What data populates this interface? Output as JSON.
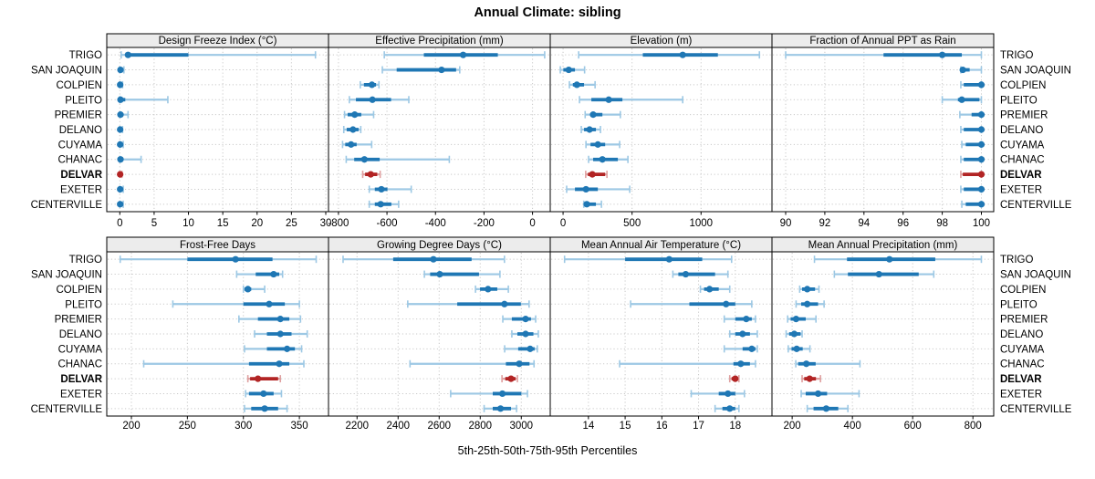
{
  "title": "Annual Climate: sibling",
  "caption": "5th-25th-50th-75th-95th Percentiles",
  "colors": {
    "blue_main": "#1f77b4",
    "blue_light": "#9dc8e4",
    "red_main": "#b22424",
    "red_light": "#dfa0a0",
    "header_bg": "#ececec",
    "grid": "#c9c9c9",
    "border": "#000000",
    "label_text": "#000000"
  },
  "sites": [
    "TRIGO",
    "SAN JOAQUIN",
    "COLPIEN",
    "PLEITO",
    "PREMIER",
    "DELANO",
    "CUYAMA",
    "CHANAC",
    "DELVAR",
    "EXETER",
    "CENTERVILLE"
  ],
  "highlight_site": "DELVAR",
  "chart_data": {
    "type": "dot-whisker-percentiles",
    "percentile_levels": [
      5,
      25,
      50,
      75,
      95
    ],
    "grid": "dotted",
    "panels": [
      {
        "title": "Design Freeze Index (°C)",
        "slug": "design-freeze-index",
        "grid_row": 0,
        "grid_col": 0,
        "xlim": [
          -1.9,
          30.4
        ],
        "ticks": [
          0,
          5,
          10,
          15,
          20,
          25,
          30
        ],
        "values": {
          "TRIGO": [
            0.2,
            0.8,
            1.2,
            10,
            28.5
          ],
          "SAN JOAQUIN": [
            0,
            0,
            0.1,
            0.2,
            0.6
          ],
          "COLPIEN": [
            0,
            0,
            0.05,
            0.15,
            0.4
          ],
          "PLEITO": [
            0,
            0,
            0.1,
            0.8,
            7
          ],
          "PREMIER": [
            0,
            0,
            0.1,
            0.4,
            1.2
          ],
          "DELANO": [
            0,
            0,
            0.05,
            0.15,
            0.4
          ],
          "CUYAMA": [
            0,
            0,
            0.05,
            0.2,
            0.5
          ],
          "CHANAC": [
            0,
            0,
            0.1,
            0.5,
            3.1
          ],
          "DELVAR": [
            0,
            0,
            0.05,
            0.1,
            0.3
          ],
          "EXETER": [
            0,
            0,
            0.05,
            0.2,
            0.5
          ],
          "CENTERVILLE": [
            0,
            0,
            0.05,
            0.2,
            0.5
          ]
        }
      },
      {
        "title": "Effective Precipitation (mm)",
        "slug": "effective-precipitation",
        "grid_row": 0,
        "grid_col": 1,
        "xlim": [
          -841,
          73
        ],
        "ticks": [
          -800,
          -600,
          -400,
          -200,
          0
        ],
        "values": {
          "TRIGO": [
            -611,
            -448,
            -286,
            -143,
            50
          ],
          "SAN JOAQUIN": [
            -619,
            -560,
            -375,
            -315,
            -300
          ],
          "COLPIEN": [
            -710,
            -695,
            -662,
            -645,
            -633
          ],
          "PLEITO": [
            -755,
            -728,
            -660,
            -583,
            -510
          ],
          "PREMIER": [
            -775,
            -762,
            -733,
            -706,
            -655
          ],
          "DELANO": [
            -778,
            -766,
            -740,
            -717,
            -708
          ],
          "CUYAMA": [
            -783,
            -772,
            -748,
            -725,
            -663
          ],
          "CHANAC": [
            -768,
            -735,
            -693,
            -630,
            -343
          ],
          "DELVAR": [
            -700,
            -690,
            -667,
            -640,
            -628
          ],
          "EXETER": [
            -673,
            -650,
            -623,
            -598,
            -500
          ],
          "CENTERVILLE": [
            -673,
            -650,
            -626,
            -582,
            -552
          ]
        }
      },
      {
        "title": "Elevation (m)",
        "slug": "elevation",
        "grid_row": 0,
        "grid_col": 2,
        "xlim": [
          -93,
          1514
        ],
        "ticks": [
          0,
          500,
          1000
        ],
        "values": {
          "TRIGO": [
            113,
            578,
            867,
            1122,
            1423
          ],
          "SAN JOAQUIN": [
            -20,
            2,
            41,
            86,
            156
          ],
          "COLPIEN": [
            46,
            71,
            100,
            152,
            232
          ],
          "PLEITO": [
            119,
            205,
            331,
            430,
            867
          ],
          "PREMIER": [
            160,
            197,
            218,
            285,
            415
          ],
          "DELANO": [
            132,
            152,
            192,
            238,
            271
          ],
          "CUYAMA": [
            166,
            199,
            252,
            305,
            410
          ],
          "CHANAC": [
            185,
            218,
            285,
            397,
            470
          ],
          "DELVAR": [
            164,
            180,
            212,
            305,
            318
          ],
          "EXETER": [
            26,
            86,
            166,
            252,
            483
          ],
          "CENTERVILLE": [
            150,
            160,
            172,
            238,
            278
          ]
        }
      },
      {
        "title": "Fraction of Annual PPT as Rain",
        "slug": "fraction-ppt-as-rain",
        "grid_row": 0,
        "grid_col": 3,
        "xlim": [
          89.3,
          100.63
        ],
        "ticks": [
          90,
          92,
          94,
          96,
          98,
          100
        ],
        "values": {
          "TRIGO": [
            90,
            95,
            98,
            99,
            100
          ],
          "SAN JOAQUIN": [
            98.95,
            99,
            99.05,
            99.4,
            100
          ],
          "COLPIEN": [
            98.95,
            99.1,
            100,
            100,
            100
          ],
          "PLEITO": [
            98,
            98.8,
            99,
            99.9,
            100
          ],
          "PREMIER": [
            98.9,
            99.5,
            100,
            100,
            100
          ],
          "DELANO": [
            98.95,
            99.1,
            100,
            100,
            100
          ],
          "CUYAMA": [
            99,
            99.2,
            100,
            100,
            100
          ],
          "CHANAC": [
            98.95,
            99.1,
            100,
            100,
            100
          ],
          "DELVAR": [
            98.95,
            99.05,
            100,
            100,
            100
          ],
          "EXETER": [
            98.95,
            99.1,
            100,
            100,
            100
          ],
          "CENTERVILLE": [
            99,
            99.2,
            100,
            100,
            100
          ]
        }
      },
      {
        "title": "Frost-Free Days",
        "slug": "frost-free-days",
        "grid_row": 1,
        "grid_col": 0,
        "xlim": [
          178,
          376
        ],
        "ticks": [
          200,
          250,
          300,
          350
        ],
        "values": {
          "TRIGO": [
            190,
            250,
            293,
            326,
            365
          ],
          "SAN JOAQUIN": [
            294,
            311,
            327,
            332,
            335
          ],
          "COLPIEN": [
            300,
            301,
            304,
            307,
            319
          ],
          "PLEITO": [
            237,
            300,
            323,
            337,
            350
          ],
          "PREMIER": [
            296,
            313,
            333,
            341,
            351
          ],
          "DELANO": [
            310,
            321,
            333,
            343,
            357
          ],
          "CUYAMA": [
            301,
            321,
            339,
            346,
            352
          ],
          "CHANAC": [
            211,
            305,
            332,
            341,
            354
          ],
          "DELVAR": [
            304,
            306,
            313,
            331,
            333
          ],
          "EXETER": [
            302,
            305,
            318,
            327,
            334
          ],
          "CENTERVILLE": [
            301,
            307,
            319,
            331,
            339
          ]
        }
      },
      {
        "title": "Growing Degree Days (°C)",
        "slug": "growing-degree-days",
        "grid_row": 1,
        "grid_col": 1,
        "xlim": [
          2061,
          3141
        ],
        "ticks": [
          2200,
          2400,
          2600,
          2800,
          3000
        ],
        "values": {
          "TRIGO": [
            2132,
            2376,
            2572,
            2758,
            2918
          ],
          "SAN JOAQUIN": [
            2528,
            2556,
            2603,
            2794,
            2896
          ],
          "COLPIEN": [
            2777,
            2799,
            2838,
            2883,
            2937
          ],
          "PLEITO": [
            2447,
            2688,
            2918,
            2998,
            3038
          ],
          "PREMIER": [
            2910,
            2954,
            3021,
            3047,
            3070
          ],
          "DELANO": [
            2954,
            2981,
            3021,
            3059,
            3083
          ],
          "CUYAMA": [
            2919,
            2985,
            3043,
            3065,
            3078
          ],
          "CHANAC": [
            2458,
            2925,
            2990,
            3040,
            3062
          ],
          "DELVAR": [
            2906,
            2922,
            2950,
            2972,
            2981
          ],
          "EXETER": [
            2656,
            2861,
            2908,
            3000,
            3030
          ],
          "CENTERVILLE": [
            2819,
            2861,
            2899,
            2950,
            2977
          ]
        }
      },
      {
        "title": "Mean Annual Air Temperature (°C)",
        "slug": "mean-annual-air-temperature",
        "grid_row": 1,
        "grid_col": 2,
        "xlim": [
          12.96,
          19.0
        ],
        "ticks": [
          14,
          15,
          16,
          17,
          18
        ],
        "values": {
          "TRIGO": [
            13.35,
            15.0,
            16.2,
            17.1,
            17.9
          ],
          "SAN JOAQUIN": [
            16.3,
            16.45,
            16.65,
            17.45,
            17.8
          ],
          "COLPIEN": [
            17.05,
            17.15,
            17.3,
            17.55,
            17.85
          ],
          "PLEITO": [
            15.15,
            16.75,
            17.75,
            18.0,
            18.45
          ],
          "PREMIER": [
            17.7,
            18.0,
            18.3,
            18.45,
            18.55
          ],
          "DELANO": [
            17.85,
            18.0,
            18.2,
            18.4,
            18.6
          ],
          "CUYAMA": [
            17.7,
            18.2,
            18.45,
            18.55,
            18.6
          ],
          "CHANAC": [
            14.85,
            17.95,
            18.15,
            18.4,
            18.55
          ],
          "DELVAR": [
            17.85,
            17.9,
            18.0,
            18.05,
            18.1
          ],
          "EXETER": [
            16.8,
            17.55,
            17.8,
            18.0,
            18.25
          ],
          "CENTERVILLE": [
            17.45,
            17.65,
            17.85,
            18.0,
            18.1
          ]
        }
      },
      {
        "title": "Mean Annual Precipitation (mm)",
        "slug": "mean-annual-precipitation",
        "grid_row": 1,
        "grid_col": 3,
        "xlim": [
          133,
          869
        ],
        "ticks": [
          200,
          400,
          600,
          800
        ],
        "values": {
          "TRIGO": [
            274,
            382,
            523,
            675,
            828
          ],
          "SAN JOAQUIN": [
            340,
            385,
            488,
            620,
            670
          ],
          "COLPIEN": [
            225,
            233,
            250,
            276,
            289
          ],
          "PLEITO": [
            213,
            230,
            250,
            286,
            306
          ],
          "PREMIER": [
            185,
            195,
            213,
            245,
            279
          ],
          "DELANO": [
            180,
            190,
            207,
            228,
            233
          ],
          "CUYAMA": [
            187,
            198,
            215,
            235,
            259
          ],
          "CHANAC": [
            212,
            220,
            247,
            278,
            425
          ],
          "DELVAR": [
            233,
            240,
            258,
            279,
            294
          ],
          "EXETER": [
            230,
            245,
            286,
            316,
            422
          ],
          "CENTERVILLE": [
            250,
            271,
            313,
            353,
            385
          ]
        }
      }
    ]
  }
}
